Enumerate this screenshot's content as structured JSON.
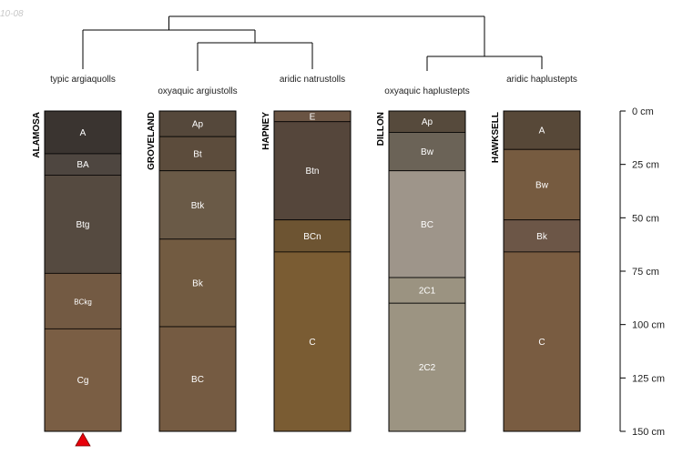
{
  "figure": {
    "corner_label": "10-08",
    "depth_unit": "cm",
    "depth_max": 150,
    "depth_ticks": [
      0,
      25,
      50,
      75,
      100,
      125,
      150
    ],
    "tick_label_suffix": " cm"
  },
  "profiles": [
    {
      "name": "ALAMOSA",
      "taxon": "typic argiaquolls",
      "marker": "red-triangle",
      "horizons": [
        {
          "name": "A",
          "top": 0,
          "bottom": 20,
          "color": "#3a3430"
        },
        {
          "name": "BA",
          "top": 20,
          "bottom": 30,
          "color": "#4e4640"
        },
        {
          "name": "Btg",
          "top": 30,
          "bottom": 76,
          "color": "#554a40"
        },
        {
          "name": "BCkg",
          "top": 76,
          "bottom": 102,
          "color": "#735a43",
          "small": true
        },
        {
          "name": "Cg",
          "top": 102,
          "bottom": 150,
          "color": "#7a5e44"
        }
      ]
    },
    {
      "name": "GROVELAND",
      "taxon": "oxyaquic argiustolls",
      "horizons": [
        {
          "name": "Ap",
          "top": 0,
          "bottom": 12,
          "color": "#55483b"
        },
        {
          "name": "Bt",
          "top": 12,
          "bottom": 28,
          "color": "#5c4c3c"
        },
        {
          "name": "Btk",
          "top": 28,
          "bottom": 60,
          "color": "#6a5a47"
        },
        {
          "name": "Bk",
          "top": 60,
          "bottom": 101,
          "color": "#725b41"
        },
        {
          "name": "BC",
          "top": 101,
          "bottom": 150,
          "color": "#755b42"
        }
      ]
    },
    {
      "name": "HAPNEY",
      "taxon": "aridic natrustolls",
      "horizons": [
        {
          "name": "E",
          "top": 0,
          "bottom": 5,
          "color": "#6a5443"
        },
        {
          "name": "Btn",
          "top": 5,
          "bottom": 51,
          "color": "#55463b"
        },
        {
          "name": "BCn",
          "top": 51,
          "bottom": 66,
          "color": "#6d5432"
        },
        {
          "name": "C",
          "top": 66,
          "bottom": 150,
          "color": "#7a5c33"
        }
      ]
    },
    {
      "name": "DILLON",
      "taxon": "oxyaquic haplustepts",
      "horizons": [
        {
          "name": "Ap",
          "top": 0,
          "bottom": 10,
          "color": "#564a3c"
        },
        {
          "name": "Bw",
          "top": 10,
          "bottom": 28,
          "color": "#6b6357"
        },
        {
          "name": "BC",
          "top": 28,
          "bottom": 78,
          "color": "#9e958a"
        },
        {
          "name": "2C1",
          "top": 78,
          "bottom": 90,
          "color": "#9b9381"
        },
        {
          "name": "2C2",
          "top": 90,
          "bottom": 150,
          "color": "#9c9482"
        }
      ]
    },
    {
      "name": "HAWKSELL",
      "taxon": "aridic haplustepts",
      "horizons": [
        {
          "name": "A",
          "top": 0,
          "bottom": 18,
          "color": "#574838"
        },
        {
          "name": "Bw",
          "top": 18,
          "bottom": 51,
          "color": "#765b40"
        },
        {
          "name": "Bk",
          "top": 51,
          "bottom": 66,
          "color": "#6c5647"
        },
        {
          "name": "C",
          "top": 66,
          "bottom": 150,
          "color": "#795c41"
        }
      ]
    }
  ],
  "dendrogram": {
    "note_members": "indices into profiles",
    "merges": [
      {
        "members": [
          1,
          2
        ]
      },
      {
        "members": [
          0,
          1,
          2
        ]
      },
      {
        "members": [
          3,
          4
        ]
      },
      {
        "members": [
          0,
          1,
          2,
          3,
          4
        ]
      }
    ]
  }
}
